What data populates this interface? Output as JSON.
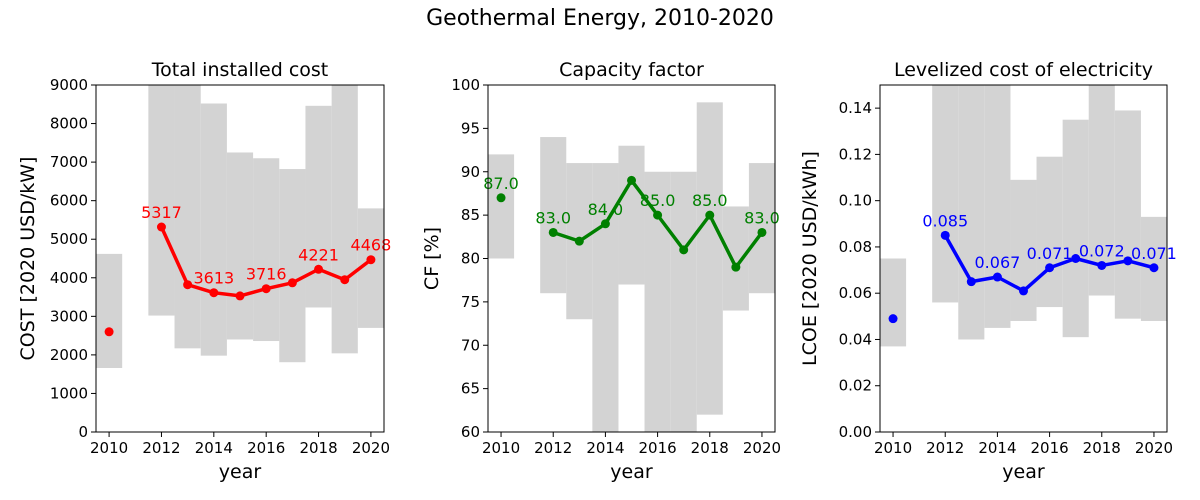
{
  "figure": {
    "title": "Geothermal Energy, 2010-2020"
  },
  "chart_data": [
    {
      "type": "line",
      "title": "Total installed cost",
      "xlabel": "year",
      "ylabel": "COST [2020 USD/kW]",
      "xlim": [
        2009.5,
        2020.5
      ],
      "ylim": [
        0,
        9000
      ],
      "xticks": [
        2010,
        2012,
        2014,
        2016,
        2018,
        2020
      ],
      "yticks": [
        0,
        1000,
        2000,
        3000,
        4000,
        5000,
        6000,
        7000,
        8000,
        9000
      ],
      "ytick_labels": [
        "0",
        "1000",
        "2000",
        "3000",
        "4000",
        "5000",
        "6000",
        "7000",
        "8000",
        "9000"
      ],
      "color": "#ff0000",
      "range_color": "#d3d3d3",
      "x": [
        2010,
        2011,
        2012,
        2013,
        2014,
        2015,
        2016,
        2017,
        2018,
        2019,
        2020
      ],
      "values": [
        2600,
        null,
        5317,
        3820,
        3613,
        3530,
        3716,
        3870,
        4221,
        3950,
        4468
      ],
      "range_low": [
        1660,
        null,
        3020,
        2170,
        1980,
        2400,
        2360,
        1810,
        3230,
        2040,
        2700
      ],
      "range_high": [
        4620,
        null,
        9000,
        9000,
        8520,
        7250,
        7100,
        6820,
        8460,
        9000,
        5800
      ],
      "annotations": [
        {
          "x": 2012,
          "y": 5317,
          "text": "5317"
        },
        {
          "x": 2014,
          "y": 3613,
          "text": "3613"
        },
        {
          "x": 2016,
          "y": 3716,
          "text": "3716"
        },
        {
          "x": 2018,
          "y": 4221,
          "text": "4221"
        },
        {
          "x": 2020,
          "y": 4468,
          "text": "4468"
        }
      ],
      "grid": false
    },
    {
      "type": "line",
      "title": "Capacity factor",
      "xlabel": "year",
      "ylabel": "CF [%]",
      "xlim": [
        2009.5,
        2020.5
      ],
      "ylim": [
        60,
        100
      ],
      "xticks": [
        2010,
        2012,
        2014,
        2016,
        2018,
        2020
      ],
      "yticks": [
        60,
        65,
        70,
        75,
        80,
        85,
        90,
        95,
        100
      ],
      "ytick_labels": [
        "60",
        "65",
        "70",
        "75",
        "80",
        "85",
        "90",
        "95",
        "100"
      ],
      "color": "#008000",
      "range_color": "#d3d3d3",
      "x": [
        2010,
        2011,
        2012,
        2013,
        2014,
        2015,
        2016,
        2017,
        2018,
        2019,
        2020
      ],
      "values": [
        87,
        null,
        83,
        82,
        84,
        89,
        85,
        81,
        85,
        79,
        83
      ],
      "range_low": [
        80,
        null,
        76,
        73,
        60,
        77,
        60,
        60,
        62,
        74,
        76
      ],
      "range_high": [
        92,
        null,
        94,
        91,
        91,
        93,
        90,
        90,
        98,
        86,
        91
      ],
      "annotations": [
        {
          "x": 2010,
          "y": 87,
          "text": "87.0"
        },
        {
          "x": 2012,
          "y": 83,
          "text": "83.0"
        },
        {
          "x": 2014,
          "y": 84,
          "text": "84.0"
        },
        {
          "x": 2016,
          "y": 85,
          "text": "85.0"
        },
        {
          "x": 2018,
          "y": 85,
          "text": "85.0"
        },
        {
          "x": 2020,
          "y": 83,
          "text": "83.0"
        }
      ],
      "grid": false
    },
    {
      "type": "line",
      "title": "Levelized cost of electricity",
      "xlabel": "year",
      "ylabel": "LCOE [2020 USD/kWh]",
      "xlim": [
        2009.5,
        2020.5
      ],
      "ylim": [
        0,
        0.15
      ],
      "xticks": [
        2010,
        2012,
        2014,
        2016,
        2018,
        2020
      ],
      "yticks": [
        0,
        0.02,
        0.04,
        0.06,
        0.08,
        0.1,
        0.12,
        0.14
      ],
      "ytick_labels": [
        "0.00",
        "0.02",
        "0.04",
        "0.06",
        "0.08",
        "0.10",
        "0.12",
        "0.14"
      ],
      "color": "#0000ff",
      "range_color": "#d3d3d3",
      "x": [
        2010,
        2011,
        2012,
        2013,
        2014,
        2015,
        2016,
        2017,
        2018,
        2019,
        2020
      ],
      "values": [
        0.049,
        null,
        0.085,
        0.065,
        0.067,
        0.061,
        0.071,
        0.075,
        0.072,
        0.074,
        0.071
      ],
      "range_low": [
        0.037,
        null,
        0.056,
        0.04,
        0.045,
        0.048,
        0.054,
        0.041,
        0.059,
        0.049,
        0.048
      ],
      "range_high": [
        0.075,
        null,
        0.15,
        0.15,
        0.15,
        0.109,
        0.119,
        0.135,
        0.15,
        0.139,
        0.093
      ],
      "annotations": [
        {
          "x": 2012,
          "y": 0.085,
          "text": "0.085"
        },
        {
          "x": 2014,
          "y": 0.067,
          "text": "0.067"
        },
        {
          "x": 2016,
          "y": 0.071,
          "text": "0.071"
        },
        {
          "x": 2018,
          "y": 0.072,
          "text": "0.072"
        },
        {
          "x": 2020,
          "y": 0.071,
          "text": "0.071"
        }
      ],
      "grid": false
    }
  ]
}
